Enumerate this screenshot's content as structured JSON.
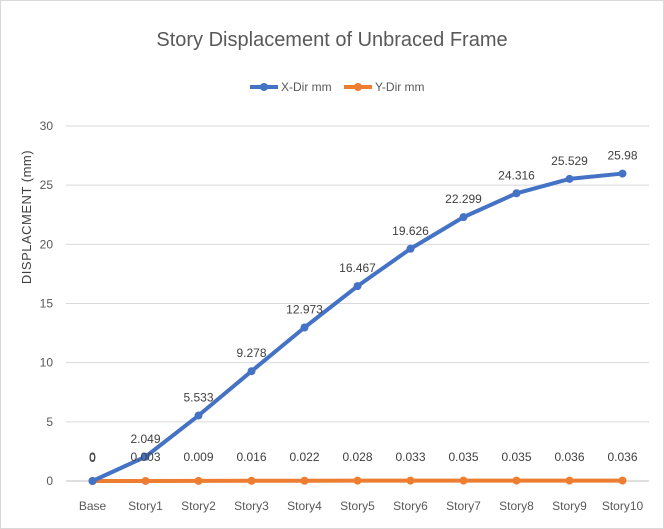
{
  "chart_data": {
    "type": "line",
    "title": "Story Displacement of Unbraced Frame",
    "xlabel": "",
    "ylabel": "DISPLACMENT (mm)",
    "ylim": [
      0,
      30
    ],
    "yticks": [
      0,
      5,
      10,
      15,
      20,
      25,
      30
    ],
    "grid": true,
    "legend_position": "top",
    "categories": [
      "Base",
      "Story1",
      "Story2",
      "Story3",
      "Story4",
      "Story5",
      "Story6",
      "Story7",
      "Story8",
      "Story9",
      "Story10"
    ],
    "series": [
      {
        "name": "X-Dir mm",
        "color": "#4472c4",
        "values": [
          0,
          2.049,
          5.533,
          9.278,
          12.973,
          16.467,
          19.626,
          22.299,
          24.316,
          25.529,
          25.98
        ],
        "labels": [
          "0",
          "2.049",
          "5.533",
          "9.278",
          "12.973",
          "16.467",
          "19.626",
          "22.299",
          "24.316",
          "25.529",
          "25.98"
        ]
      },
      {
        "name": "Y-Dir mm",
        "color": "#ed7d31",
        "values": [
          0,
          0.003,
          0.009,
          0.016,
          0.022,
          0.028,
          0.033,
          0.035,
          0.035,
          0.036,
          0.036
        ],
        "labels": [
          "0",
          "0.003",
          "0.009",
          "0.016",
          "0.022",
          "0.028",
          "0.033",
          "0.035",
          "0.035",
          "0.036",
          "0.036"
        ]
      }
    ]
  }
}
